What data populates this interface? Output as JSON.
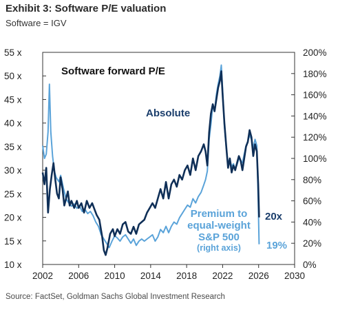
{
  "header": {
    "title": "Exhibit 3: Software P/E valuation",
    "subtitle": "Software = IGV"
  },
  "footer": {
    "source": "Source: FactSet, Goldman Sachs Global Investment Research"
  },
  "colors": {
    "absolute": "#0f2f57",
    "premium": "#5aa3d9",
    "absolute_label": "#1a3d6b",
    "premium_label": "#5aa3d9"
  },
  "chart_data": {
    "type": "line",
    "title": "Software forward P/E",
    "x_axis": {
      "range": [
        2002,
        2030
      ],
      "ticks": [
        2002,
        2006,
        2010,
        2014,
        2018,
        2022,
        2026,
        2030
      ]
    },
    "y_left": {
      "range": [
        10,
        55
      ],
      "ticks": [
        10,
        15,
        20,
        25,
        30,
        35,
        40,
        45,
        50,
        55
      ],
      "tick_labels": [
        "10 x",
        "15 x",
        "20 x",
        "25 x",
        "30 x",
        "35 x",
        "40 x",
        "45 x",
        "50 x",
        "55 x"
      ]
    },
    "y_right": {
      "range": [
        0,
        200
      ],
      "ticks": [
        0,
        20,
        40,
        60,
        80,
        100,
        120,
        140,
        160,
        180,
        200
      ],
      "tick_labels": [
        "0%",
        "20%",
        "40%",
        "60%",
        "80%",
        "100%",
        "120%",
        "140%",
        "160%",
        "180%",
        "200%"
      ]
    },
    "grid": false,
    "series": [
      {
        "name": "Absolute",
        "axis": "left",
        "color": "#0f2f57",
        "end_label": "20x",
        "points": [
          [
            2002.0,
            29.5
          ],
          [
            2002.2,
            27.0
          ],
          [
            2002.4,
            30.5
          ],
          [
            2002.6,
            21.0
          ],
          [
            2002.8,
            26.0
          ],
          [
            2003.0,
            29.0
          ],
          [
            2003.2,
            31.5
          ],
          [
            2003.4,
            28.0
          ],
          [
            2003.6,
            25.0
          ],
          [
            2003.8,
            24.0
          ],
          [
            2004.0,
            28.5
          ],
          [
            2004.2,
            26.0
          ],
          [
            2004.4,
            22.5
          ],
          [
            2004.6,
            24.0
          ],
          [
            2004.8,
            25.5
          ],
          [
            2005.0,
            22.5
          ],
          [
            2005.2,
            23.5
          ],
          [
            2005.5,
            22.0
          ],
          [
            2005.8,
            23.5
          ],
          [
            2006.0,
            22.0
          ],
          [
            2006.3,
            23.0
          ],
          [
            2006.6,
            21.0
          ],
          [
            2006.9,
            23.5
          ],
          [
            2007.2,
            22.0
          ],
          [
            2007.5,
            23.0
          ],
          [
            2007.8,
            21.5
          ],
          [
            2008.0,
            20.5
          ],
          [
            2008.3,
            19.5
          ],
          [
            2008.6,
            16.0
          ],
          [
            2008.8,
            13.0
          ],
          [
            2009.0,
            12.0
          ],
          [
            2009.2,
            13.5
          ],
          [
            2009.5,
            16.5
          ],
          [
            2009.8,
            17.5
          ],
          [
            2010.0,
            16.0
          ],
          [
            2010.3,
            17.5
          ],
          [
            2010.6,
            16.5
          ],
          [
            2010.9,
            18.5
          ],
          [
            2011.2,
            19.0
          ],
          [
            2011.5,
            17.0
          ],
          [
            2011.8,
            16.5
          ],
          [
            2012.1,
            18.0
          ],
          [
            2012.4,
            16.5
          ],
          [
            2012.7,
            18.5
          ],
          [
            2013.0,
            19.0
          ],
          [
            2013.3,
            19.5
          ],
          [
            2013.6,
            21.0
          ],
          [
            2013.9,
            22.0
          ],
          [
            2014.2,
            23.0
          ],
          [
            2014.5,
            22.0
          ],
          [
            2014.8,
            24.0
          ],
          [
            2015.1,
            26.0
          ],
          [
            2015.4,
            24.0
          ],
          [
            2015.7,
            27.5
          ],
          [
            2016.0,
            24.0
          ],
          [
            2016.3,
            27.0
          ],
          [
            2016.6,
            28.0
          ],
          [
            2016.9,
            26.5
          ],
          [
            2017.2,
            29.0
          ],
          [
            2017.5,
            28.0
          ],
          [
            2017.8,
            30.0
          ],
          [
            2018.1,
            31.0
          ],
          [
            2018.4,
            29.0
          ],
          [
            2018.7,
            32.5
          ],
          [
            2019.0,
            30.0
          ],
          [
            2019.3,
            33.0
          ],
          [
            2019.6,
            34.0
          ],
          [
            2019.9,
            35.5
          ],
          [
            2020.1,
            34.0
          ],
          [
            2020.3,
            31.0
          ],
          [
            2020.5,
            38.0
          ],
          [
            2020.7,
            42.0
          ],
          [
            2020.9,
            44.0
          ],
          [
            2021.1,
            42.5
          ],
          [
            2021.3,
            45.0
          ],
          [
            2021.5,
            47.5
          ],
          [
            2021.7,
            49.0
          ],
          [
            2021.85,
            51.0
          ],
          [
            2022.0,
            46.0
          ],
          [
            2022.2,
            40.0
          ],
          [
            2022.4,
            35.0
          ],
          [
            2022.6,
            30.5
          ],
          [
            2022.8,
            32.5
          ],
          [
            2023.0,
            29.5
          ],
          [
            2023.2,
            31.0
          ],
          [
            2023.4,
            30.0
          ],
          [
            2023.6,
            31.5
          ],
          [
            2023.8,
            33.0
          ],
          [
            2024.0,
            32.0
          ],
          [
            2024.2,
            30.0
          ],
          [
            2024.4,
            32.5
          ],
          [
            2024.6,
            35.0
          ],
          [
            2024.8,
            36.0
          ],
          [
            2025.0,
            38.5
          ],
          [
            2025.2,
            37.0
          ],
          [
            2025.4,
            33.0
          ],
          [
            2025.6,
            35.5
          ],
          [
            2025.8,
            34.0
          ],
          [
            2025.95,
            27.0
          ],
          [
            2026.05,
            20.0
          ]
        ]
      },
      {
        "name": "Premium to equal-weight S&P 500 (right axis)",
        "label_lines": [
          "Premium to",
          "equal-weight",
          "S&P 500",
          "(right axis)"
        ],
        "axis": "right",
        "color": "#5aa3d9",
        "end_label": "19%",
        "points": [
          [
            2002.0,
            112
          ],
          [
            2002.2,
            100
          ],
          [
            2002.4,
            104
          ],
          [
            2002.6,
            125
          ],
          [
            2002.75,
            170
          ],
          [
            2002.9,
            125
          ],
          [
            2003.1,
            102
          ],
          [
            2003.3,
            88
          ],
          [
            2003.5,
            82
          ],
          [
            2003.8,
            78
          ],
          [
            2004.0,
            84
          ],
          [
            2004.3,
            72
          ],
          [
            2004.6,
            62
          ],
          [
            2004.9,
            58
          ],
          [
            2005.2,
            55
          ],
          [
            2005.5,
            57
          ],
          [
            2005.8,
            53
          ],
          [
            2006.1,
            55
          ],
          [
            2006.4,
            50
          ],
          [
            2006.7,
            52
          ],
          [
            2007.0,
            48
          ],
          [
            2007.3,
            50
          ],
          [
            2007.6,
            46
          ],
          [
            2007.9,
            40
          ],
          [
            2008.2,
            36
          ],
          [
            2008.5,
            28
          ],
          [
            2008.8,
            24
          ],
          [
            2009.1,
            20
          ],
          [
            2009.4,
            16
          ],
          [
            2009.7,
            22
          ],
          [
            2010.0,
            27
          ],
          [
            2010.3,
            25
          ],
          [
            2010.6,
            22
          ],
          [
            2010.9,
            26
          ],
          [
            2011.2,
            28
          ],
          [
            2011.5,
            24
          ],
          [
            2011.8,
            20
          ],
          [
            2012.1,
            24
          ],
          [
            2012.4,
            18
          ],
          [
            2012.7,
            22
          ],
          [
            2013.0,
            24
          ],
          [
            2013.3,
            22
          ],
          [
            2013.6,
            24
          ],
          [
            2013.9,
            26
          ],
          [
            2014.2,
            28
          ],
          [
            2014.5,
            22
          ],
          [
            2014.8,
            26
          ],
          [
            2015.1,
            33
          ],
          [
            2015.4,
            30
          ],
          [
            2015.7,
            36
          ],
          [
            2016.0,
            30
          ],
          [
            2016.3,
            36
          ],
          [
            2016.6,
            40
          ],
          [
            2016.9,
            38
          ],
          [
            2017.2,
            44
          ],
          [
            2017.5,
            48
          ],
          [
            2017.8,
            52
          ],
          [
            2018.1,
            56
          ],
          [
            2018.4,
            54
          ],
          [
            2018.7,
            62
          ],
          [
            2019.0,
            58
          ],
          [
            2019.3,
            64
          ],
          [
            2019.6,
            68
          ],
          [
            2019.9,
            75
          ],
          [
            2020.1,
            80
          ],
          [
            2020.3,
            88
          ],
          [
            2020.5,
            118
          ],
          [
            2020.7,
            132
          ],
          [
            2020.9,
            150
          ],
          [
            2021.1,
            145
          ],
          [
            2021.3,
            160
          ],
          [
            2021.5,
            170
          ],
          [
            2021.7,
            178
          ],
          [
            2021.85,
            188
          ],
          [
            2022.0,
            165
          ],
          [
            2022.2,
            130
          ],
          [
            2022.4,
            110
          ],
          [
            2022.6,
            95
          ],
          [
            2022.8,
            100
          ],
          [
            2023.0,
            92
          ],
          [
            2023.2,
            95
          ],
          [
            2023.4,
            90
          ],
          [
            2023.6,
            94
          ],
          [
            2023.8,
            100
          ],
          [
            2024.0,
            98
          ],
          [
            2024.2,
            96
          ],
          [
            2024.4,
            104
          ],
          [
            2024.6,
            112
          ],
          [
            2024.8,
            116
          ],
          [
            2025.0,
            122
          ],
          [
            2025.2,
            118
          ],
          [
            2025.4,
            110
          ],
          [
            2025.6,
            118
          ],
          [
            2025.8,
            112
          ],
          [
            2025.95,
            60
          ],
          [
            2026.05,
            19
          ]
        ]
      }
    ],
    "annotations": [
      {
        "text": "Absolute",
        "color": "#1a3d6b"
      },
      {
        "text": "20x",
        "color": "#1a3d6b"
      },
      {
        "text": "19%",
        "color": "#5aa3d9"
      }
    ]
  }
}
